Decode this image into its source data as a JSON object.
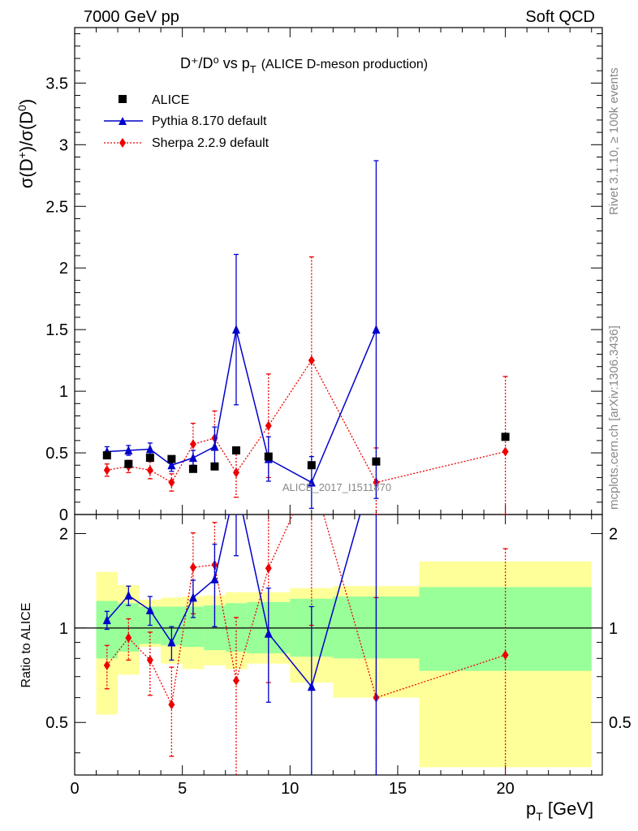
{
  "header": {
    "left": "7000 GeV pp",
    "right": "Soft QCD",
    "side_top": "Rivet 3.1.10, ≥ 100k events",
    "side_bottom": "mcplots.cern.ch [arXiv:1306.3436]"
  },
  "plot_title": {
    "main": "D⁺/D⁰ vs p",
    "sub": "T",
    "tail": "(ALICE D-meson production)"
  },
  "watermark": "ALICE_2017_I1511870",
  "legend": {
    "data": "ALICE",
    "pythia": "Pythia 8.170 default",
    "sherpa": "Sherpa 2.2.9 default"
  },
  "colors": {
    "pythia": "#0000cc",
    "sherpa": "#ee0000",
    "green_band": "#99ff99",
    "yellow_band": "#ffff99"
  },
  "chart_data": {
    "type": "scatter",
    "x_label": "p_T [GeV]",
    "top_y_label": "σ(D⁺)/σ(D⁰)",
    "ratio_y_label": "Ratio to ALICE",
    "xlim": [
      0,
      24.5
    ],
    "top_ylim": [
      0,
      3.95
    ],
    "ratio_ylim": [
      0.34,
      2.3
    ],
    "ratio_log": true,
    "x_ticks": [
      0,
      5,
      10,
      15,
      20
    ],
    "top_y_ticks": [
      "0",
      "0.5",
      "1",
      "1.5",
      "2",
      "2.5",
      "3",
      "3.5"
    ],
    "ratio_y_ticks": [
      "0.5",
      "1",
      "2"
    ],
    "data": {
      "name": "ALICE",
      "x": [
        1.5,
        2.5,
        3.5,
        4.5,
        5.5,
        6.5,
        7.5,
        9,
        11,
        14,
        20
      ],
      "y": [
        0.48,
        0.41,
        0.46,
        0.45,
        0.37,
        0.39,
        0.52,
        0.47,
        0.4,
        0.43,
        0.63
      ]
    },
    "pythia": {
      "name": "Pythia 8.170 default",
      "x": [
        1.5,
        2.5,
        3.5,
        4.5,
        5.5,
        6.5,
        7.5,
        9,
        11,
        14
      ],
      "y": [
        0.51,
        0.52,
        0.53,
        0.4,
        0.46,
        0.55,
        1.5,
        0.45,
        0.26,
        1.5
      ],
      "err": [
        0.04,
        0.04,
        0.05,
        0.05,
        0.06,
        0.16,
        0.61,
        0.18,
        0.21,
        1.37
      ],
      "ratio": [
        1.06,
        1.27,
        1.14,
        0.9,
        1.25,
        1.43,
        2.9,
        0.96,
        0.65,
        3.5
      ],
      "ratio_err": [
        0.07,
        0.09,
        0.12,
        0.11,
        0.17,
        0.42,
        1.2,
        0.38,
        0.52,
        3.2
      ]
    },
    "sherpa": {
      "name": "Sherpa 2.2.9 default",
      "x": [
        1.5,
        2.5,
        3.5,
        4.5,
        5.5,
        6.5,
        7.5,
        9,
        11,
        14,
        20
      ],
      "y": [
        0.36,
        0.39,
        0.36,
        0.26,
        0.57,
        0.62,
        0.34,
        0.72,
        1.25,
        0.26,
        0.51
      ],
      "err": [
        0.05,
        0.05,
        0.07,
        0.07,
        0.17,
        0.22,
        0.2,
        0.42,
        0.84,
        0.28,
        0.61
      ],
      "ratio": [
        0.76,
        0.93,
        0.79,
        0.57,
        1.56,
        1.59,
        0.68,
        1.55,
        3.12,
        0.6,
        0.82
      ],
      "ratio_err": [
        0.12,
        0.14,
        0.18,
        0.18,
        0.45,
        0.58,
        0.4,
        0.88,
        2.1,
        0.65,
        0.97
      ]
    },
    "bands": {
      "x_edges": [
        1,
        2,
        3,
        4,
        5,
        6,
        7,
        8,
        10,
        12,
        16,
        24
      ],
      "green": [
        [
          0.8,
          1.22
        ],
        [
          0.84,
          1.2
        ],
        [
          0.89,
          1.17
        ],
        [
          0.88,
          1.17
        ],
        [
          0.87,
          1.17
        ],
        [
          0.85,
          1.18
        ],
        [
          0.84,
          1.2
        ],
        [
          0.83,
          1.21
        ],
        [
          0.81,
          1.24
        ],
        [
          0.8,
          1.26
        ],
        [
          0.73,
          1.35
        ]
      ],
      "yellow": [
        [
          0.53,
          1.51
        ],
        [
          0.71,
          1.37
        ],
        [
          0.87,
          1.23
        ],
        [
          0.77,
          1.25
        ],
        [
          0.74,
          1.26
        ],
        [
          0.76,
          1.27
        ],
        [
          0.74,
          1.3
        ],
        [
          0.77,
          1.3
        ],
        [
          0.67,
          1.34
        ],
        [
          0.6,
          1.36
        ],
        [
          0.36,
          1.63
        ]
      ]
    }
  }
}
